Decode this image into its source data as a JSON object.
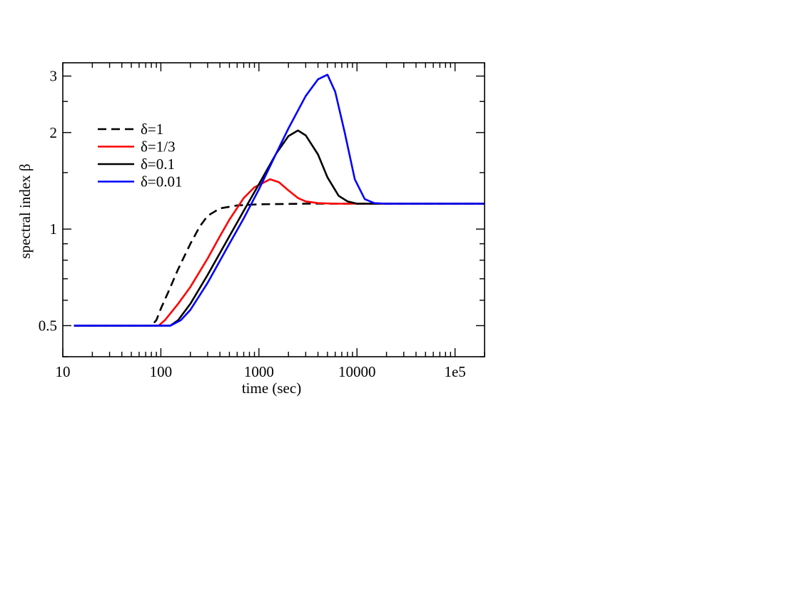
{
  "chart_data": {
    "type": "line",
    "xscale": "log",
    "yscale": "log",
    "xlim": [
      10,
      200000
    ],
    "ylim": [
      0.4,
      3.3
    ],
    "xlabel": "time (sec)",
    "ylabel": "spectral index β",
    "x_ticks": [
      {
        "value": 10,
        "label": "10"
      },
      {
        "value": 100,
        "label": "100"
      },
      {
        "value": 1000,
        "label": "1000"
      },
      {
        "value": 10000,
        "label": "10000"
      },
      {
        "value": 100000,
        "label": "1e5"
      }
    ],
    "y_ticks": [
      {
        "value": 0.5,
        "label": "0.5"
      },
      {
        "value": 1,
        "label": "1"
      },
      {
        "value": 2,
        "label": "2"
      },
      {
        "value": 3,
        "label": "3"
      }
    ],
    "legend_position": "top-left",
    "grid": false,
    "series": [
      {
        "name": "δ=1",
        "color": "#000000",
        "dash": "dashed",
        "points": [
          [
            13,
            0.5
          ],
          [
            80,
            0.5
          ],
          [
            90,
            0.52
          ],
          [
            100,
            0.565
          ],
          [
            120,
            0.64
          ],
          [
            150,
            0.75
          ],
          [
            200,
            0.9
          ],
          [
            250,
            1.02
          ],
          [
            300,
            1.1
          ],
          [
            400,
            1.16
          ],
          [
            600,
            1.185
          ],
          [
            1000,
            1.195
          ],
          [
            3000,
            1.2
          ],
          [
            10000,
            1.2
          ],
          [
            200000,
            1.2
          ]
        ]
      },
      {
        "name": "δ=1/3",
        "color": "#ff0000",
        "dash": "solid",
        "points": [
          [
            13,
            0.5
          ],
          [
            95,
            0.5
          ],
          [
            110,
            0.52
          ],
          [
            150,
            0.585
          ],
          [
            200,
            0.66
          ],
          [
            300,
            0.81
          ],
          [
            400,
            0.95
          ],
          [
            500,
            1.07
          ],
          [
            700,
            1.25
          ],
          [
            900,
            1.35
          ],
          [
            1300,
            1.43
          ],
          [
            1600,
            1.4
          ],
          [
            2000,
            1.32
          ],
          [
            2500,
            1.25
          ],
          [
            3000,
            1.22
          ],
          [
            4000,
            1.205
          ],
          [
            6000,
            1.2
          ],
          [
            200000,
            1.2
          ]
        ]
      },
      {
        "name": "δ=0.1",
        "color": "#000000",
        "dash": "solid",
        "points": [
          [
            13,
            0.5
          ],
          [
            125,
            0.5
          ],
          [
            150,
            0.52
          ],
          [
            200,
            0.585
          ],
          [
            300,
            0.72
          ],
          [
            500,
            0.95
          ],
          [
            700,
            1.14
          ],
          [
            1000,
            1.38
          ],
          [
            1500,
            1.72
          ],
          [
            2000,
            1.95
          ],
          [
            2500,
            2.03
          ],
          [
            3000,
            1.96
          ],
          [
            4000,
            1.71
          ],
          [
            5000,
            1.45
          ],
          [
            6500,
            1.27
          ],
          [
            8000,
            1.22
          ],
          [
            10000,
            1.2
          ],
          [
            200000,
            1.2
          ]
        ]
      },
      {
        "name": "δ=0.01",
        "color": "#0000ff",
        "dash": "solid",
        "points": [
          [
            13,
            0.5
          ],
          [
            125,
            0.5
          ],
          [
            160,
            0.52
          ],
          [
            200,
            0.56
          ],
          [
            300,
            0.68
          ],
          [
            500,
            0.9
          ],
          [
            700,
            1.08
          ],
          [
            1000,
            1.33
          ],
          [
            1500,
            1.72
          ],
          [
            2000,
            2.06
          ],
          [
            3000,
            2.6
          ],
          [
            4000,
            2.93
          ],
          [
            5000,
            3.03
          ],
          [
            6000,
            2.68
          ],
          [
            7500,
            2.0
          ],
          [
            9500,
            1.43
          ],
          [
            12000,
            1.24
          ],
          [
            15000,
            1.205
          ],
          [
            20000,
            1.2
          ],
          [
            200000,
            1.2
          ]
        ]
      }
    ]
  }
}
